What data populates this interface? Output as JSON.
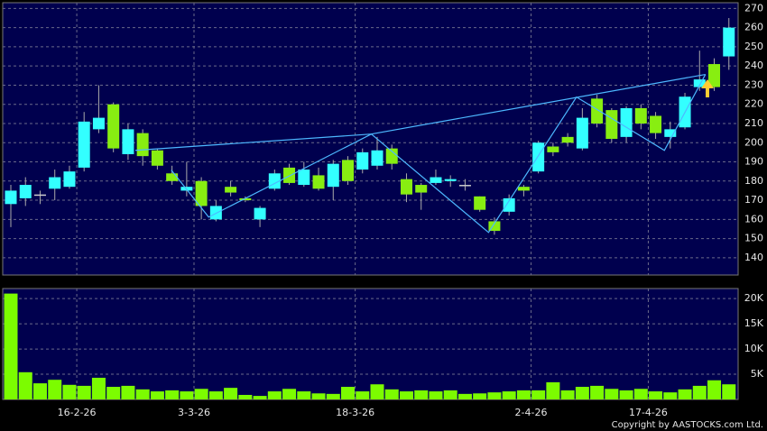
{
  "chart_data": {
    "type": "candlestick",
    "categories": [
      null,
      null,
      null,
      null,
      "16-2-26",
      null,
      null,
      null,
      null,
      null,
      null,
      null,
      "3-3-26",
      null,
      null,
      null,
      null,
      null,
      null,
      null,
      null,
      null,
      null,
      "18-3-26",
      null,
      null,
      null,
      null,
      null,
      null,
      null,
      null,
      null,
      null,
      null,
      "2-4-26",
      null,
      null,
      null,
      null,
      null,
      null,
      null,
      "17-4-26",
      null,
      null,
      null,
      null,
      null,
      null
    ],
    "open": [
      168,
      171,
      173,
      176,
      177,
      187,
      207,
      220,
      194,
      205,
      196,
      184,
      175,
      180,
      160,
      177,
      171,
      160,
      176,
      187,
      178,
      183,
      177,
      191,
      186,
      188,
      197,
      181,
      178,
      179,
      180,
      178,
      172,
      159,
      164,
      177,
      185,
      198,
      203,
      197,
      223,
      217,
      203,
      218,
      214,
      203,
      208,
      229,
      241,
      245
    ],
    "high": [
      178,
      182,
      175,
      186,
      188,
      216,
      230,
      221,
      210,
      207,
      197,
      188,
      190,
      182,
      170,
      180,
      172,
      167,
      186,
      189,
      190,
      187,
      191,
      193,
      197,
      203,
      199,
      184,
      179,
      186,
      183,
      181,
      172,
      161,
      173,
      178,
      201,
      200,
      205,
      218,
      225,
      218,
      219,
      220,
      216,
      211,
      226,
      248,
      244,
      265
    ],
    "low": [
      156,
      167,
      168,
      170,
      176,
      185,
      205,
      195,
      191,
      188,
      186,
      178,
      172,
      160,
      159,
      172,
      169,
      156,
      175,
      178,
      177,
      175,
      170,
      178,
      184,
      186,
      186,
      169,
      165,
      178,
      177,
      175,
      164,
      152,
      162,
      172,
      184,
      193,
      198,
      196,
      208,
      200,
      200,
      207,
      202,
      197,
      207,
      227,
      227,
      238
    ],
    "close": [
      175,
      178,
      173,
      182,
      185,
      211,
      213,
      197,
      207,
      193,
      188,
      180,
      177,
      167,
      167,
      174,
      170,
      166,
      184,
      179,
      186,
      176,
      189,
      180,
      195,
      196,
      189,
      173,
      174,
      182,
      181,
      178,
      165,
      154,
      171,
      175,
      200,
      195,
      200,
      213,
      210,
      202,
      218,
      210,
      205,
      207,
      224,
      233,
      229,
      260
    ],
    "up_color": "#33ffff",
    "down_color": "#88ee11",
    "volume": [
      21000,
      5400,
      3200,
      3900,
      2900,
      2700,
      4300,
      2500,
      2700,
      2000,
      1600,
      1800,
      1600,
      2100,
      1600,
      2300,
      900,
      700,
      1600,
      2100,
      1600,
      1200,
      1100,
      2500,
      1600,
      3000,
      2000,
      1600,
      1800,
      1600,
      1800,
      1100,
      1200,
      1400,
      1600,
      1800,
      1800,
      3400,
      1800,
      2500,
      2700,
      2100,
      1800,
      2100,
      1600,
      1400,
      2000,
      2700,
      3800,
      3000
    ],
    "volume_color": "#7cfc00",
    "ylim": [
      131,
      273
    ],
    "yticks": [
      140,
      150,
      160,
      170,
      180,
      190,
      200,
      210,
      220,
      230,
      240,
      250,
      260,
      270
    ],
    "volume_ylim": [
      0,
      22000
    ],
    "volume_yticks": [
      {
        "value": 5000,
        "label": "5K"
      },
      {
        "value": 10000,
        "label": "10K"
      },
      {
        "value": 15000,
        "label": "15K"
      },
      {
        "value": 20000,
        "label": "20K"
      }
    ],
    "grid": true,
    "overlay_lines": [
      {
        "color": "#4db8ff",
        "x": [
          10.95,
          13.5,
          24.6,
          32.6,
          38.6,
          44.6,
          47.4
        ],
        "y": [
          185.7,
          161.2,
          204.5,
          153.2,
          223.8,
          196,
          235.6
        ]
      },
      {
        "color": "#4db8ff",
        "x": [
          8.5,
          24.6
        ],
        "y": [
          196,
          204.5
        ]
      },
      {
        "color": "#4db8ff",
        "x": [
          24.6,
          47.4
        ],
        "y": [
          204.5,
          235.6
        ]
      }
    ],
    "copyright": "Copyright by AASTOCKS.com Ltd."
  }
}
